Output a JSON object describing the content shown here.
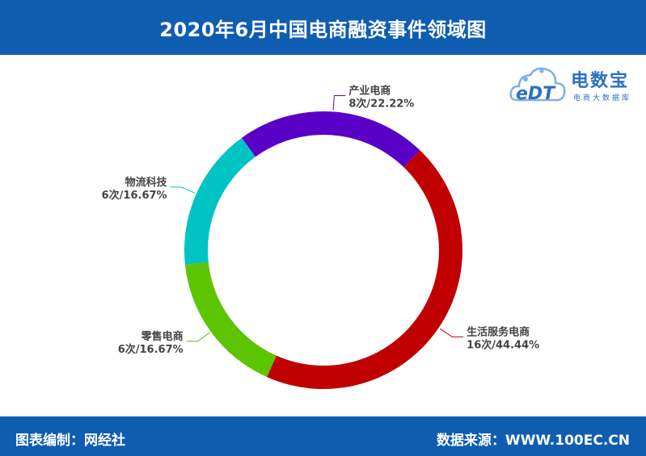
{
  "header": {
    "title": "2020年6月中国电商融资事件领域图"
  },
  "footer": {
    "left": "图表编制：网经社",
    "right": "数据来源：WWW.100EC.CN"
  },
  "logo": {
    "mark": "eDT",
    "brand": "电数宝",
    "sub": "电商大数据库"
  },
  "colors": {
    "header_bg": "#0f5db1"
  },
  "chart_data": {
    "type": "pie",
    "donut": true,
    "legend": "none",
    "slices": [
      {
        "label": "产业电商",
        "count": 8,
        "value_label": "8次/22.22%",
        "percent": 22.22,
        "color": "#5a00c6"
      },
      {
        "label": "生活服务电商",
        "count": 16,
        "value_label": "16次/44.44%",
        "percent": 44.44,
        "color": "#c00000"
      },
      {
        "label": "零售电商",
        "count": 6,
        "value_label": "6次/16.67%",
        "percent": 16.67,
        "color": "#5cc400"
      },
      {
        "label": "物流科技",
        "count": 6,
        "value_label": "6次/16.67%",
        "percent": 16.67,
        "color": "#00c3c3"
      }
    ]
  }
}
